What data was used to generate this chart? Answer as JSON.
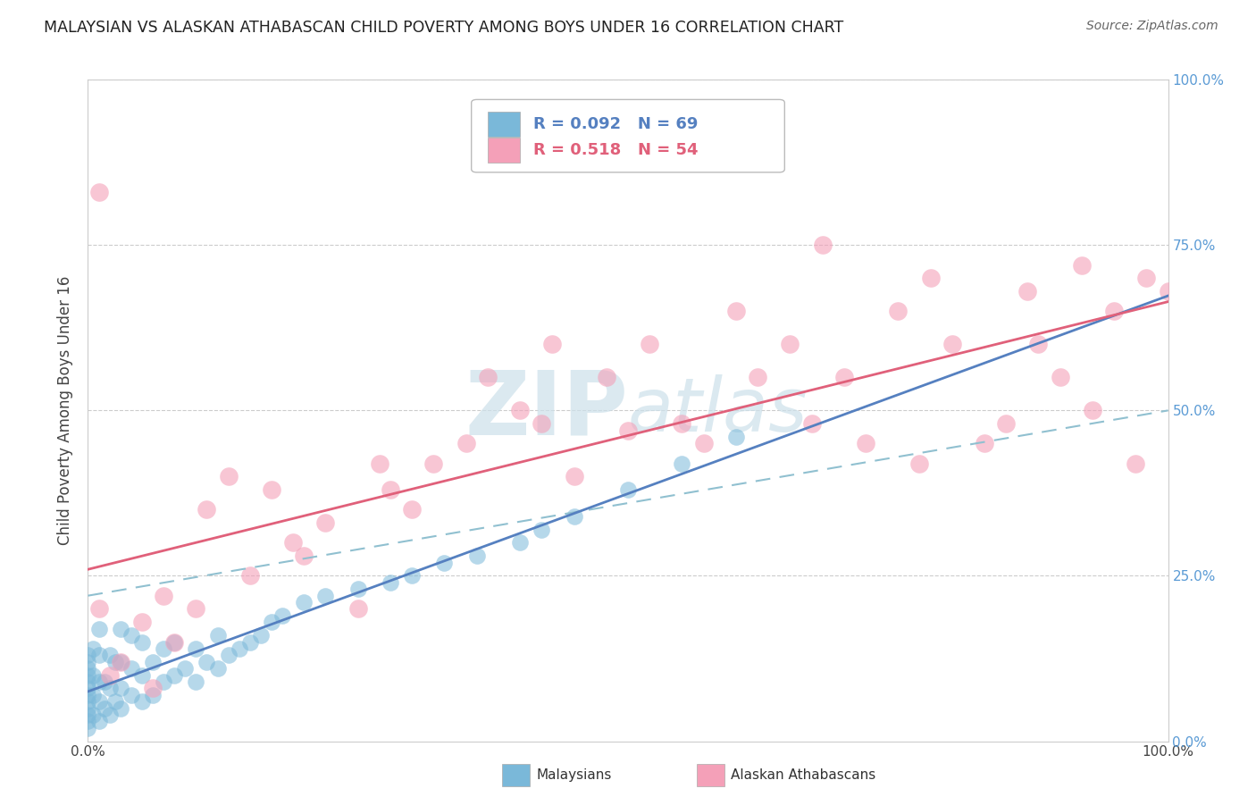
{
  "title": "MALAYSIAN VS ALASKAN ATHABASCAN CHILD POVERTY AMONG BOYS UNDER 16 CORRELATION CHART",
  "source": "Source: ZipAtlas.com",
  "ylabel": "Child Poverty Among Boys Under 16",
  "malaysian_R": 0.092,
  "malaysian_N": 69,
  "athabascan_R": 0.518,
  "athabascan_N": 54,
  "xlim": [
    0.0,
    1.0
  ],
  "ylim": [
    0.0,
    1.0
  ],
  "xticks": [
    0.0,
    0.25,
    0.5,
    0.75,
    1.0
  ],
  "yticks": [
    0.0,
    0.25,
    0.5,
    0.75,
    1.0
  ],
  "xticklabels": [
    "0.0%",
    "",
    "",
    "",
    "100.0%"
  ],
  "yticklabels": [
    "",
    "",
    "",
    "",
    ""
  ],
  "right_yticklabels": [
    "0.0%",
    "25.0%",
    "50.0%",
    "75.0%",
    "100.0%"
  ],
  "malaysian_color": "#7ab8d9",
  "athabascan_color": "#f4a0b8",
  "malaysian_line_color": "#5580c0",
  "athabascan_line_color": "#e0607a",
  "dashed_line_color": "#90c0d0",
  "watermark_color": "#cce0ea",
  "background_color": "#ffffff",
  "grid_color": "#cccccc",
  "malaysian_x": [
    0.0,
    0.0,
    0.0,
    0.0,
    0.0,
    0.0,
    0.0,
    0.0,
    0.0,
    0.0,
    0.0,
    0.0,
    0.005,
    0.005,
    0.005,
    0.005,
    0.01,
    0.01,
    0.01,
    0.01,
    0.01,
    0.015,
    0.015,
    0.02,
    0.02,
    0.02,
    0.025,
    0.025,
    0.03,
    0.03,
    0.03,
    0.03,
    0.04,
    0.04,
    0.04,
    0.05,
    0.05,
    0.05,
    0.06,
    0.06,
    0.07,
    0.07,
    0.08,
    0.08,
    0.09,
    0.1,
    0.1,
    0.11,
    0.12,
    0.12,
    0.13,
    0.14,
    0.15,
    0.16,
    0.17,
    0.18,
    0.2,
    0.22,
    0.25,
    0.28,
    0.3,
    0.33,
    0.36,
    0.4,
    0.42,
    0.45,
    0.5,
    0.55,
    0.6
  ],
  "malaysian_y": [
    0.02,
    0.03,
    0.04,
    0.05,
    0.06,
    0.07,
    0.08,
    0.09,
    0.1,
    0.11,
    0.12,
    0.13,
    0.04,
    0.07,
    0.1,
    0.14,
    0.03,
    0.06,
    0.09,
    0.13,
    0.17,
    0.05,
    0.09,
    0.04,
    0.08,
    0.13,
    0.06,
    0.12,
    0.05,
    0.08,
    0.12,
    0.17,
    0.07,
    0.11,
    0.16,
    0.06,
    0.1,
    0.15,
    0.07,
    0.12,
    0.09,
    0.14,
    0.1,
    0.15,
    0.11,
    0.09,
    0.14,
    0.12,
    0.11,
    0.16,
    0.13,
    0.14,
    0.15,
    0.16,
    0.18,
    0.19,
    0.21,
    0.22,
    0.23,
    0.24,
    0.25,
    0.27,
    0.28,
    0.3,
    0.32,
    0.34,
    0.38,
    0.42,
    0.46
  ],
  "athabascan_x": [
    0.01,
    0.01,
    0.02,
    0.03,
    0.05,
    0.06,
    0.07,
    0.08,
    0.1,
    0.11,
    0.13,
    0.15,
    0.17,
    0.19,
    0.2,
    0.22,
    0.25,
    0.27,
    0.28,
    0.3,
    0.32,
    0.35,
    0.37,
    0.4,
    0.42,
    0.43,
    0.45,
    0.48,
    0.5,
    0.52,
    0.55,
    0.57,
    0.6,
    0.62,
    0.65,
    0.67,
    0.68,
    0.7,
    0.72,
    0.75,
    0.77,
    0.78,
    0.8,
    0.83,
    0.85,
    0.87,
    0.88,
    0.9,
    0.92,
    0.93,
    0.95,
    0.97,
    0.98,
    1.0
  ],
  "athabascan_y": [
    0.83,
    0.2,
    0.1,
    0.12,
    0.18,
    0.08,
    0.22,
    0.15,
    0.2,
    0.35,
    0.4,
    0.25,
    0.38,
    0.3,
    0.28,
    0.33,
    0.2,
    0.42,
    0.38,
    0.35,
    0.42,
    0.45,
    0.55,
    0.5,
    0.48,
    0.6,
    0.4,
    0.55,
    0.47,
    0.6,
    0.48,
    0.45,
    0.65,
    0.55,
    0.6,
    0.48,
    0.75,
    0.55,
    0.45,
    0.65,
    0.42,
    0.7,
    0.6,
    0.45,
    0.48,
    0.68,
    0.6,
    0.55,
    0.72,
    0.5,
    0.65,
    0.42,
    0.7,
    0.68
  ]
}
